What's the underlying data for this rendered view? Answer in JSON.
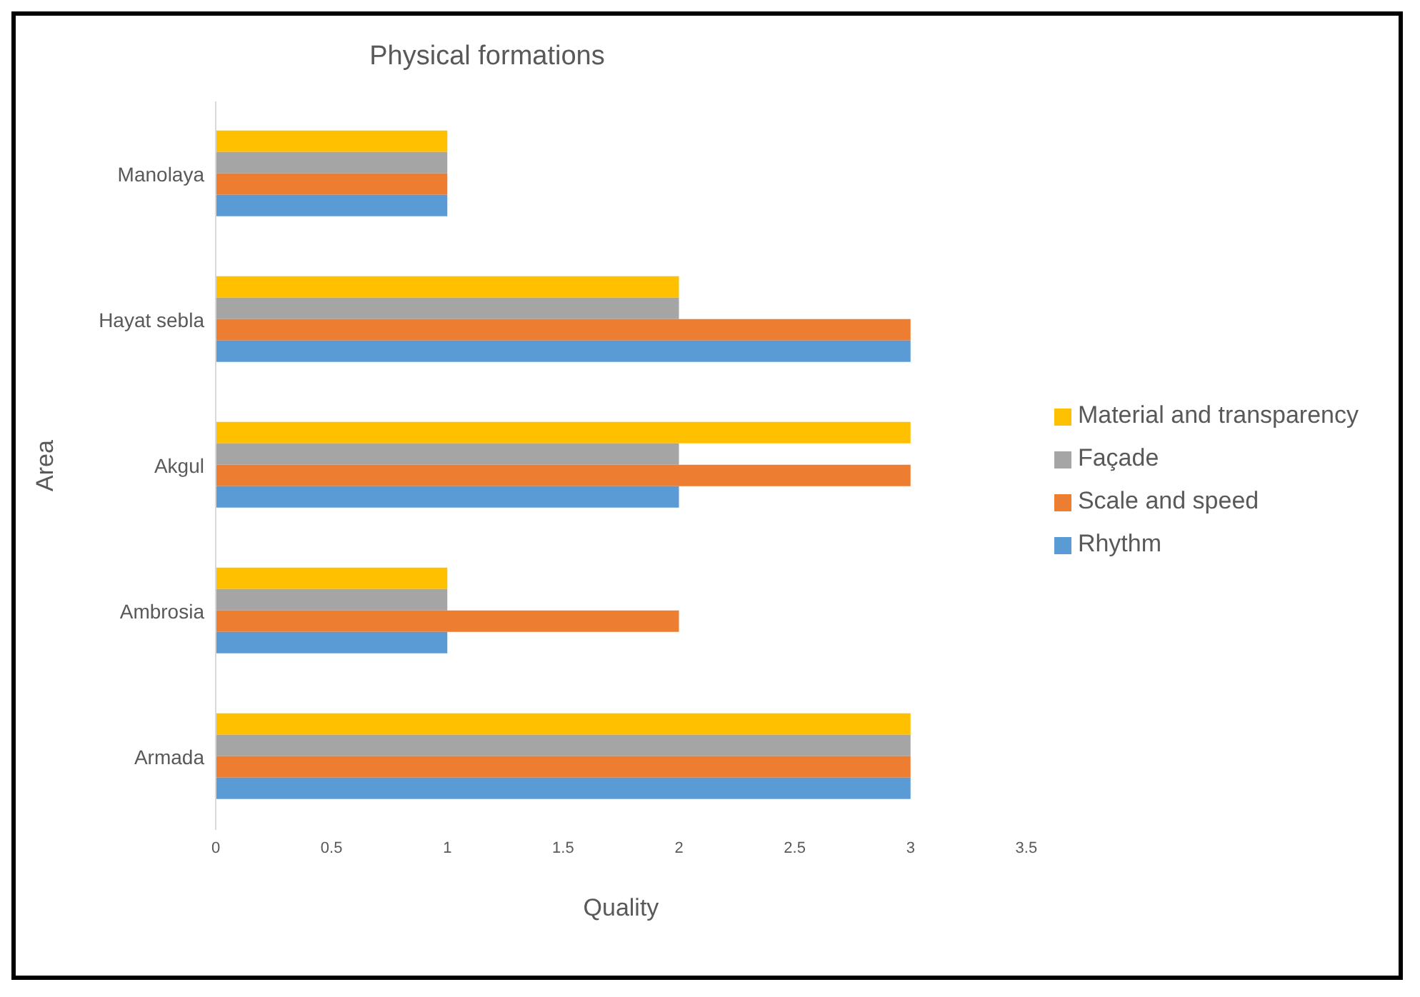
{
  "chart_data": {
    "type": "bar",
    "orientation": "horizontal",
    "title": "Physical formations",
    "xlabel": "Quality",
    "ylabel": "Area",
    "categories": [
      "Manolaya",
      "Hayat sebla",
      "Akgul",
      "Ambrosia",
      "Armada"
    ],
    "series": [
      {
        "name": "Rhythm",
        "color": "#5b9bd5",
        "values": [
          1,
          3,
          2,
          1,
          3
        ]
      },
      {
        "name": "Scale and speed",
        "color": "#ed7d31",
        "values": [
          1,
          3,
          3,
          2,
          3
        ]
      },
      {
        "name": "Façade",
        "color": "#a5a5a5",
        "values": [
          1,
          2,
          2,
          1,
          3
        ]
      },
      {
        "name": "Material and transparency",
        "color": "#ffc000",
        "values": [
          1,
          2,
          3,
          1,
          3
        ]
      }
    ],
    "xlim": [
      0,
      3.5
    ],
    "xticks": [
      0,
      0.5,
      1,
      1.5,
      2,
      2.5,
      3,
      3.5
    ],
    "grid": false,
    "legend": "right"
  }
}
